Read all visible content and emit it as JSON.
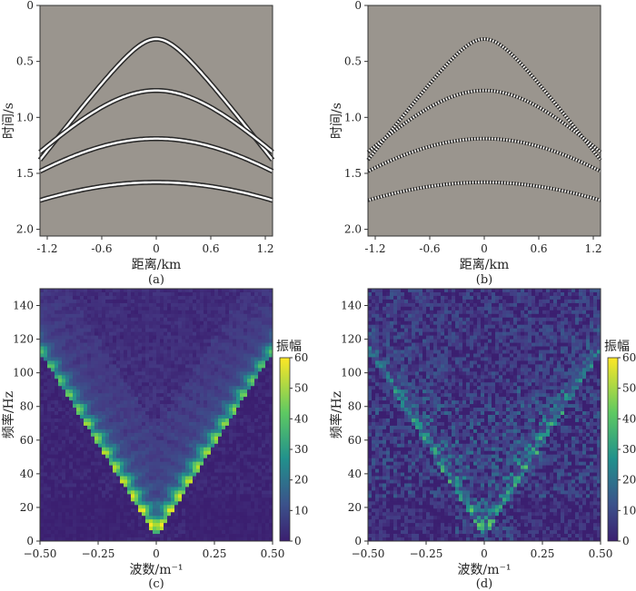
{
  "chart_data": [
    {
      "id": "a",
      "type": "heatmap",
      "panel_label": "(a)",
      "xlabel": "距离/km",
      "ylabel": "时间/s",
      "xticks": [
        -1.2,
        -0.6,
        0,
        0.6,
        1.2
      ],
      "xtick_labels": [
        "-1.2",
        "-0.6",
        "0",
        "0.6",
        "1.2"
      ],
      "yticks": [
        0,
        0.5,
        1.0,
        1.5,
        2.0
      ],
      "ytick_labels": [
        "0",
        "0.5",
        "1.0",
        "1.5",
        "2.0"
      ],
      "xlim": [
        -1.28,
        1.28
      ],
      "ylim": [
        0,
        2.06
      ],
      "background": "#9a958e",
      "events": [
        {
          "t0": 0.3,
          "velocity": 1.9
        },
        {
          "t0": 0.76,
          "velocity": 2.4
        },
        {
          "t0": 1.19,
          "velocity": 2.9
        },
        {
          "t0": 1.58,
          "velocity": 3.5
        }
      ],
      "style": "clean"
    },
    {
      "id": "b",
      "type": "heatmap",
      "panel_label": "(b)",
      "xlabel": "距离/km",
      "ylabel": "时间/s",
      "xticks": [
        -1.2,
        -0.6,
        0,
        0.6,
        1.2
      ],
      "xtick_labels": [
        "-1.2",
        "-0.6",
        "0",
        "0.6",
        "1.2"
      ],
      "yticks": [
        0,
        0.5,
        1.0,
        1.5,
        2.0
      ],
      "ytick_labels": [
        "0",
        "0.5",
        "1.0",
        "1.5",
        "2.0"
      ],
      "xlim": [
        -1.28,
        1.28
      ],
      "ylim": [
        0,
        2.06
      ],
      "background": "#9a958e",
      "events": [
        {
          "t0": 0.3,
          "velocity": 1.9
        },
        {
          "t0": 0.76,
          "velocity": 2.4
        },
        {
          "t0": 1.19,
          "velocity": 2.9
        },
        {
          "t0": 1.58,
          "velocity": 3.5
        }
      ],
      "style": "decimated"
    },
    {
      "id": "c",
      "type": "heatmap",
      "panel_label": "(c)",
      "xlabel": "波数/m⁻¹",
      "ylabel": "频率/Hz",
      "xticks": [
        -0.5,
        -0.25,
        0,
        0.25,
        0.5
      ],
      "xtick_labels": [
        "−0.50",
        "−0.25",
        "0",
        "0.25",
        "0.50"
      ],
      "yticks": [
        0,
        20,
        40,
        60,
        80,
        100,
        120,
        140
      ],
      "ytick_labels": [
        "0",
        "20",
        "40",
        "60",
        "80",
        "100",
        "120",
        "140"
      ],
      "xlim": [
        -0.5,
        0.5
      ],
      "ylim": [
        0,
        150
      ],
      "colorbar": {
        "title": "振幅",
        "range": [
          0,
          60
        ],
        "ticks": [
          0,
          10,
          20,
          30,
          40,
          50,
          60
        ],
        "tick_labels": [
          "0",
          "10",
          "20",
          "30",
          "40",
          "50",
          "60"
        ],
        "colors": [
          "#440154",
          "#3b528b",
          "#21918c",
          "#5ec962",
          "#fde725"
        ]
      },
      "noise_level": 0.08,
      "signal_gain": 1.0
    },
    {
      "id": "d",
      "type": "heatmap",
      "panel_label": "(d)",
      "xlabel": "波数/m⁻¹",
      "ylabel": "频率/Hz",
      "xticks": [
        -0.5,
        -0.25,
        0,
        0.25,
        0.5
      ],
      "xtick_labels": [
        "−0.50",
        "−0.25",
        "0",
        "0.25",
        "0.50"
      ],
      "yticks": [
        0,
        20,
        40,
        60,
        80,
        100,
        120,
        140
      ],
      "ytick_labels": [
        "0",
        "20",
        "40",
        "60",
        "80",
        "100",
        "120",
        "140"
      ],
      "xlim": [
        -0.5,
        0.5
      ],
      "ylim": [
        0,
        150
      ],
      "colorbar": {
        "title": "振幅",
        "range": [
          0,
          60
        ],
        "ticks": [
          0,
          10,
          20,
          30,
          40,
          50,
          60
        ],
        "tick_labels": [
          "0",
          "10",
          "20",
          "30",
          "40",
          "50",
          "60"
        ],
        "colors": [
          "#440154",
          "#3b528b",
          "#21918c",
          "#5ec962",
          "#fde725"
        ]
      },
      "noise_level": 0.38,
      "signal_gain": 0.45
    }
  ]
}
